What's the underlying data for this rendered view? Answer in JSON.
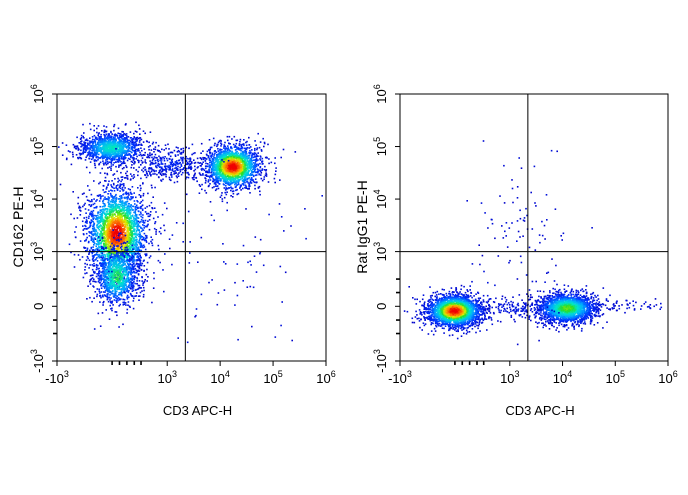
{
  "chart_data": [
    {
      "type": "scatter",
      "style": "flow-cytometry density dot plot (pseudocolor: blue low, red high)",
      "xlabel": "CD3 APC-H",
      "ylabel": "CD162 PE-H",
      "x_scale": "biexponential",
      "y_scale": "biexponential",
      "x_ticks": [
        {
          "label": "-10",
          "sup": "3"
        },
        {
          "label": "10",
          "sup": "3"
        },
        {
          "label": "10",
          "sup": "4"
        },
        {
          "label": "10",
          "sup": "5"
        },
        {
          "label": "10",
          "sup": "6"
        }
      ],
      "y_ticks": [
        {
          "label": "-10",
          "sup": "3"
        },
        {
          "label": "0",
          "sup": ""
        },
        {
          "label": "10",
          "sup": "3"
        },
        {
          "label": "10",
          "sup": "4"
        },
        {
          "label": "10",
          "sup": "5"
        },
        {
          "label": "10",
          "sup": "6"
        }
      ],
      "xlim": [
        -1000,
        1000000
      ],
      "ylim": [
        -1000,
        1000000
      ],
      "quadrant_gate": {
        "x": 2200,
        "y": 1000
      },
      "populations": [
        {
          "x_center": 400,
          "y_center": 3000,
          "density": "high",
          "color": "#ff2a00"
        },
        {
          "x_center": 350,
          "y_center": 70000,
          "density": "medium",
          "color": "#39c6ff"
        },
        {
          "x_center": 28000,
          "y_center": 35000,
          "density": "high",
          "color": "#ff1a00"
        },
        {
          "x_center": 400,
          "y_center": 250,
          "density": "medium",
          "color": "#2f6bff"
        }
      ]
    },
    {
      "type": "scatter",
      "style": "flow-cytometry density dot plot (pseudocolor: blue low, red high)",
      "xlabel": "CD3 APC-H",
      "ylabel": "Rat IgG1 PE-H",
      "x_scale": "biexponential",
      "y_scale": "biexponential",
      "x_ticks": [
        {
          "label": "-10",
          "sup": "3"
        },
        {
          "label": "10",
          "sup": "3"
        },
        {
          "label": "10",
          "sup": "4"
        },
        {
          "label": "10",
          "sup": "5"
        },
        {
          "label": "10",
          "sup": "6"
        }
      ],
      "y_ticks": [
        {
          "label": "-10",
          "sup": "3"
        },
        {
          "label": "0",
          "sup": ""
        },
        {
          "label": "10",
          "sup": "3"
        },
        {
          "label": "10",
          "sup": "4"
        },
        {
          "label": "10",
          "sup": "5"
        },
        {
          "label": "10",
          "sup": "6"
        }
      ],
      "xlim": [
        -1000,
        1000000
      ],
      "ylim": [
        -1000,
        1000000
      ],
      "quadrant_gate": {
        "x": 2200,
        "y": 1000
      },
      "populations": [
        {
          "x_center": 300,
          "y_center": 120,
          "density": "high",
          "color": "#ff2000"
        },
        {
          "x_center": 20000,
          "y_center": 120,
          "density": "high",
          "color": "#3adf2a"
        }
      ]
    }
  ]
}
